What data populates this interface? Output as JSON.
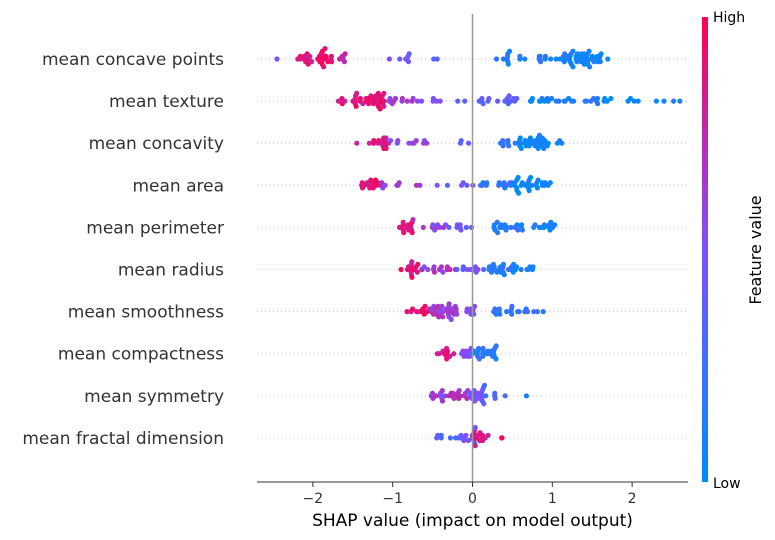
{
  "chart_data": {
    "type": "scatter",
    "subtype": "shap-beeswarm",
    "xlabel": "SHAP value (impact on model output)",
    "xlim": [
      -2.7,
      2.7
    ],
    "xticks": [
      -2,
      -1,
      0,
      1,
      2
    ],
    "xtick_labels": [
      "−2",
      "−1",
      "0",
      "1",
      "2"
    ],
    "colorbar": {
      "title": "Feature value",
      "high_label": "High",
      "low_label": "Low",
      "high_color": "#ff0051",
      "low_color": "#008bfb"
    },
    "features": [
      {
        "name": "mean concave points",
        "groups": [
          [
            -2.5,
            -2.4,
            1,
            0.6
          ],
          [
            -2.2,
            -2.0,
            12,
            0.85
          ],
          [
            -1.95,
            -1.75,
            18,
            0.92
          ],
          [
            -1.7,
            -1.55,
            6,
            0.7
          ],
          [
            -1.1,
            -0.35,
            8,
            0.45
          ],
          [
            0.3,
            0.9,
            16,
            0.15
          ],
          [
            0.9,
            1.25,
            16,
            0.1
          ],
          [
            1.25,
            1.6,
            30,
            0.05
          ],
          [
            1.6,
            1.7,
            3,
            0.05
          ]
        ]
      },
      {
        "name": "mean texture",
        "groups": [
          [
            -1.7,
            -1.55,
            4,
            0.85
          ],
          [
            -1.5,
            -1.1,
            34,
            0.88
          ],
          [
            -1.1,
            -0.6,
            12,
            0.6
          ],
          [
            -0.5,
            -0.05,
            6,
            0.45
          ],
          [
            0.05,
            0.7,
            16,
            0.35
          ],
          [
            0.7,
            1.6,
            24,
            0.1
          ],
          [
            1.6,
            2.7,
            12,
            0.05
          ]
        ]
      },
      {
        "name": "mean concavity",
        "groups": [
          [
            -1.5,
            -1.4,
            1,
            0.9
          ],
          [
            -1.3,
            -1.05,
            16,
            0.85
          ],
          [
            -1.05,
            -0.5,
            10,
            0.55
          ],
          [
            -0.4,
            0.1,
            3,
            0.4
          ],
          [
            0.3,
            0.55,
            8,
            0.2
          ],
          [
            0.55,
            0.95,
            30,
            0.05
          ],
          [
            0.95,
            1.15,
            3,
            0.05
          ]
        ]
      },
      {
        "name": "mean area",
        "groups": [
          [
            -1.4,
            -1.15,
            16,
            0.9
          ],
          [
            -1.15,
            -0.65,
            8,
            0.6
          ],
          [
            -0.45,
            0.05,
            6,
            0.45
          ],
          [
            0.05,
            0.5,
            14,
            0.2
          ],
          [
            0.5,
            0.95,
            26,
            0.05
          ],
          [
            0.95,
            1.0,
            1,
            0.05
          ]
        ]
      },
      {
        "name": "mean perimeter",
        "groups": [
          [
            -0.95,
            -0.75,
            14,
            0.85
          ],
          [
            -0.75,
            -0.3,
            10,
            0.6
          ],
          [
            -0.3,
            0.05,
            8,
            0.45
          ],
          [
            0.25,
            0.8,
            20,
            0.15
          ],
          [
            0.8,
            1.05,
            10,
            0.05
          ]
        ]
      },
      {
        "name": "mean radius",
        "groups": [
          [
            -0.9,
            -0.65,
            14,
            0.9
          ],
          [
            -0.65,
            -0.2,
            14,
            0.65
          ],
          [
            -0.2,
            0.2,
            10,
            0.45
          ],
          [
            0.2,
            0.5,
            20,
            0.15
          ],
          [
            0.5,
            0.8,
            10,
            0.05
          ]
        ]
      },
      {
        "name": "mean smoothness",
        "groups": [
          [
            -0.85,
            -0.55,
            10,
            0.9
          ],
          [
            -0.55,
            -0.2,
            30,
            0.65
          ],
          [
            -0.2,
            0.05,
            10,
            0.5
          ],
          [
            0.25,
            0.7,
            16,
            0.2
          ],
          [
            0.7,
            1.15,
            3,
            0.15
          ]
        ]
      },
      {
        "name": "mean compactness",
        "groups": [
          [
            -0.45,
            -0.2,
            12,
            0.85
          ],
          [
            -0.2,
            0.0,
            10,
            0.55
          ],
          [
            0.0,
            0.3,
            22,
            0.15
          ]
        ]
      },
      {
        "name": "mean symmetry",
        "groups": [
          [
            -0.55,
            -0.3,
            10,
            0.6
          ],
          [
            -0.3,
            -0.05,
            14,
            0.7
          ],
          [
            -0.05,
            0.15,
            18,
            0.45
          ],
          [
            0.15,
            0.45,
            6,
            0.3
          ],
          [
            0.6,
            0.75,
            1,
            0.15
          ]
        ]
      },
      {
        "name": "mean fractal dimension",
        "groups": [
          [
            -0.45,
            -0.15,
            8,
            0.3
          ],
          [
            -0.15,
            0.05,
            10,
            0.45
          ],
          [
            0.0,
            0.2,
            14,
            0.85
          ],
          [
            0.25,
            0.4,
            2,
            0.9
          ]
        ]
      }
    ]
  }
}
